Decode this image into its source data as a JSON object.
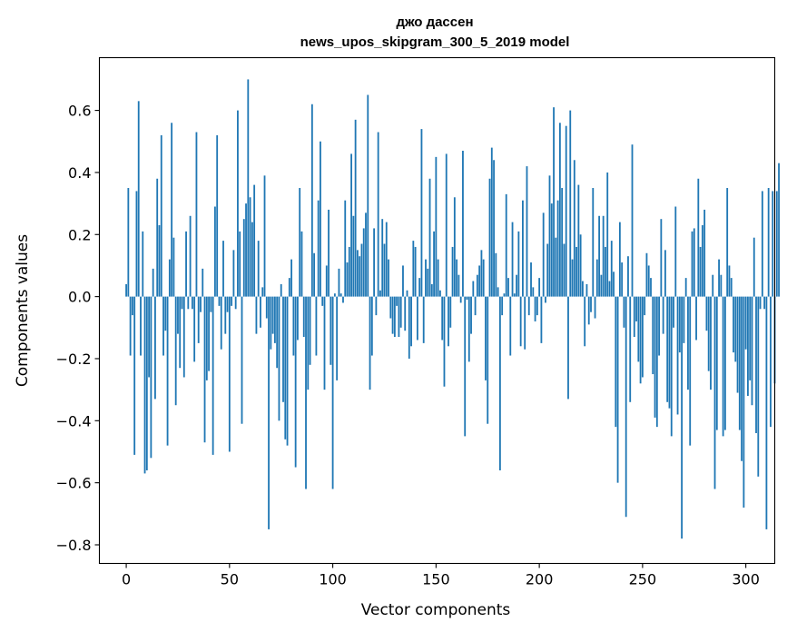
{
  "chart_data": {
    "type": "bar",
    "title_line1": "джо дассен",
    "title_line2": "news_upos_skipgram_300_5_2019 model",
    "xlabel": "Vector components",
    "ylabel": "Components values",
    "xlim": [
      -13,
      314
    ],
    "ylim": [
      -0.86,
      0.77
    ],
    "x_ticks": [
      0,
      50,
      100,
      150,
      200,
      250,
      300
    ],
    "x_tick_labels": [
      "0",
      "50",
      "100",
      "150",
      "200",
      "250",
      "300"
    ],
    "y_ticks": [
      -0.8,
      -0.6,
      -0.4,
      -0.2,
      0.0,
      0.2,
      0.4,
      0.6
    ],
    "y_tick_labels": [
      "−0.8",
      "−0.6",
      "−0.4",
      "−0.2",
      "0.0",
      "0.2",
      "0.4",
      "0.6"
    ],
    "grid": false,
    "color": "#1f77b4",
    "values": [
      0.04,
      0.35,
      -0.19,
      -0.06,
      -0.51,
      0.34,
      0.63,
      -0.19,
      0.21,
      -0.57,
      -0.56,
      -0.26,
      -0.52,
      0.09,
      -0.33,
      0.38,
      0.23,
      0.52,
      -0.19,
      -0.11,
      -0.48,
      0.12,
      0.56,
      0.19,
      -0.35,
      -0.12,
      -0.23,
      -0.04,
      -0.26,
      0.21,
      -0.04,
      0.26,
      -0.04,
      -0.21,
      0.53,
      -0.15,
      -0.05,
      0.09,
      -0.47,
      -0.27,
      -0.24,
      -0.05,
      -0.51,
      0.29,
      0.52,
      -0.03,
      -0.17,
      0.18,
      -0.12,
      -0.05,
      -0.5,
      -0.03,
      0.15,
      -0.04,
      0.6,
      0.21,
      -0.41,
      0.25,
      0.3,
      0.7,
      0.32,
      0.24,
      0.36,
      -0.12,
      0.18,
      -0.1,
      0.03,
      0.39,
      -0.07,
      -0.75,
      -0.17,
      -0.12,
      -0.15,
      -0.23,
      -0.4,
      0.04,
      -0.34,
      -0.46,
      -0.48,
      0.06,
      0.12,
      -0.19,
      -0.55,
      -0.14,
      0.35,
      0.21,
      -0.13,
      -0.62,
      -0.3,
      -0.22,
      0.62,
      0.14,
      -0.19,
      0.31,
      0.5,
      -0.03,
      -0.3,
      0.1,
      0.28,
      -0.22,
      -0.62,
      0.01,
      -0.27,
      0.09,
      0.01,
      -0.02,
      0.31,
      0.11,
      0.16,
      0.46,
      0.26,
      0.57,
      0.15,
      0.13,
      0.17,
      0.22,
      0.27,
      0.65,
      -0.3,
      -0.19,
      0.22,
      -0.06,
      0.53,
      0.02,
      0.25,
      0.17,
      0.24,
      0.12,
      -0.07,
      -0.12,
      -0.13,
      -0.03,
      -0.13,
      -0.1,
      0.1,
      -0.11,
      0.02,
      -0.2,
      -0.16,
      0.18,
      0.16,
      -0.14,
      0.06,
      0.54,
      -0.15,
      0.12,
      0.09,
      0.38,
      0.04,
      0.21,
      0.45,
      0.12,
      0.02,
      -0.14,
      -0.29,
      0.46,
      -0.16,
      -0.1,
      0.16,
      0.32,
      0.12,
      0.07,
      -0.02,
      0.47,
      -0.45,
      -0.01,
      -0.21,
      -0.12,
      0.05,
      -0.06,
      0.07,
      0.1,
      0.15,
      0.12,
      -0.27,
      -0.41,
      0.38,
      0.48,
      0.44,
      0.14,
      0.03,
      -0.56,
      -0.06,
      0.01,
      0.33,
      0.06,
      -0.19,
      0.24,
      0.01,
      0.07,
      0.21,
      -0.16,
      0.31,
      -0.17,
      0.42,
      -0.06,
      0.11,
      0.03,
      -0.08,
      -0.06,
      0.06,
      -0.15,
      0.27,
      -0.02,
      0.17,
      0.39,
      0.3,
      0.61,
      0.19,
      0.31,
      0.56,
      0.35,
      0.17,
      0.55,
      -0.33,
      0.6,
      0.12,
      0.44,
      0.16,
      0.36,
      0.2,
      0.05,
      -0.16,
      0.04,
      -0.09,
      -0.05,
      0.35,
      -0.07,
      0.12,
      0.26,
      0.07,
      0.26,
      0.16,
      0.4,
      0.05,
      0.18,
      0.08,
      -0.42,
      -0.6,
      0.24,
      0.11,
      -0.1,
      -0.71,
      0.13,
      -0.34,
      0.49,
      -0.13,
      -0.08,
      -0.21,
      -0.28,
      -0.26,
      -0.06,
      0.14,
      0.1,
      0.06,
      -0.25,
      -0.39,
      -0.42,
      -0.19,
      0.25,
      -0.12,
      0.15,
      -0.34,
      -0.36,
      -0.45,
      -0.1,
      0.29,
      -0.38,
      -0.18,
      -0.78,
      -0.15,
      0.06,
      -0.3,
      -0.48,
      0.21,
      0.22,
      -0.14,
      0.38,
      0.16,
      0.23,
      0.28,
      -0.11,
      -0.24,
      -0.3,
      0.07,
      -0.62,
      -0.43,
      0.12,
      0.07,
      -0.45,
      -0.43,
      0.35,
      0.1,
      0.06,
      -0.18,
      -0.21,
      -0.31,
      -0.43,
      -0.53,
      -0.68,
      -0.17,
      -0.32,
      -0.27,
      -0.35,
      0.19,
      -0.44,
      -0.58,
      -0.04,
      0.34,
      -0.04,
      -0.75,
      0.35,
      -0.42,
      0.34,
      -0.28,
      0.34,
      0.43
    ]
  }
}
